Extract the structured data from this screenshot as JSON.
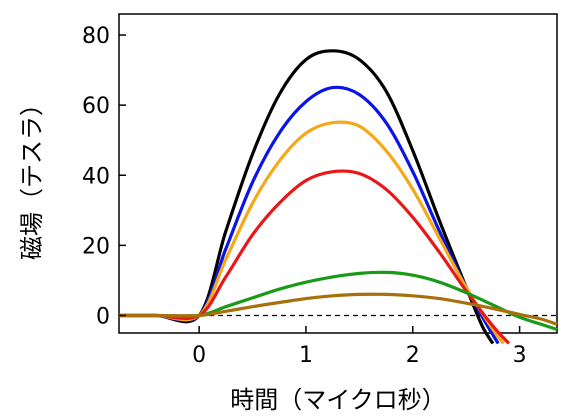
{
  "chart_data": {
    "type": "line",
    "xlabel": "時間（マイクロ秒）",
    "ylabel": "磁場（テスラ）",
    "xlim": [
      -0.75,
      3.35
    ],
    "ylim": [
      -5,
      86
    ],
    "xticks": [
      0,
      1,
      2,
      3
    ],
    "yticks": [
      0,
      20,
      40,
      60,
      80
    ],
    "reference_line": {
      "y": 0,
      "style": "dashed"
    },
    "grid": false,
    "legend": "none",
    "series": [
      {
        "color": "#000000",
        "x": [
          -0.75,
          -0.4,
          0,
          0.25,
          0.5,
          0.75,
          1.0,
          1.25,
          1.5,
          1.75,
          2.0,
          2.25,
          2.5,
          2.65,
          2.75
        ],
        "y": [
          0,
          0,
          0,
          24,
          46,
          63,
          73,
          75.5,
          73,
          64,
          47,
          27,
          8,
          -3,
          -8
        ]
      },
      {
        "color": "#0a14e6",
        "x": [
          -0.75,
          -0.4,
          0,
          0.25,
          0.5,
          0.75,
          1.0,
          1.25,
          1.5,
          1.75,
          2.0,
          2.25,
          2.5,
          2.7,
          2.8
        ],
        "y": [
          0,
          0,
          0,
          19,
          38,
          52,
          61,
          65,
          63,
          55,
          41,
          24,
          8,
          -3,
          -8
        ]
      },
      {
        "color": "#f5a818",
        "x": [
          -0.75,
          -0.4,
          0,
          0.25,
          0.5,
          0.75,
          1.0,
          1.25,
          1.5,
          1.75,
          2.0,
          2.25,
          2.5,
          2.75,
          2.85
        ],
        "y": [
          0,
          0,
          0,
          16,
          32,
          44,
          52,
          55,
          54,
          47,
          36,
          22,
          8,
          -4,
          -8
        ]
      },
      {
        "color": "#e81818",
        "x": [
          -0.75,
          -0.4,
          0,
          0.25,
          0.5,
          0.75,
          1.0,
          1.25,
          1.5,
          1.75,
          2.0,
          2.25,
          2.5,
          2.75,
          2.9
        ],
        "y": [
          0,
          0,
          0,
          11,
          23,
          32,
          38.5,
          41,
          40.5,
          36,
          28,
          18,
          7,
          -3,
          -8
        ]
      },
      {
        "color": "#1a9a18",
        "x": [
          -0.75,
          -0.4,
          0,
          0.25,
          0.5,
          0.75,
          1.0,
          1.25,
          1.5,
          1.75,
          2.0,
          2.25,
          2.5,
          2.75,
          3.0,
          3.2,
          3.35
        ],
        "y": [
          0,
          0,
          0,
          2.5,
          5,
          7.5,
          9.5,
          11,
          12,
          12.3,
          11.5,
          9.5,
          6.5,
          3,
          -0.5,
          -2.5,
          -4
        ]
      },
      {
        "color": "#a8700c",
        "x": [
          -0.75,
          -0.4,
          0,
          0.25,
          0.5,
          0.75,
          1.0,
          1.25,
          1.5,
          1.75,
          2.0,
          2.25,
          2.5,
          2.75,
          3.0,
          3.2,
          3.35
        ],
        "y": [
          0,
          0,
          0,
          1.2,
          2.5,
          3.7,
          4.8,
          5.6,
          6.0,
          6.0,
          5.6,
          4.8,
          3.5,
          2.0,
          0.3,
          -1.0,
          -2.5
        ]
      }
    ]
  }
}
